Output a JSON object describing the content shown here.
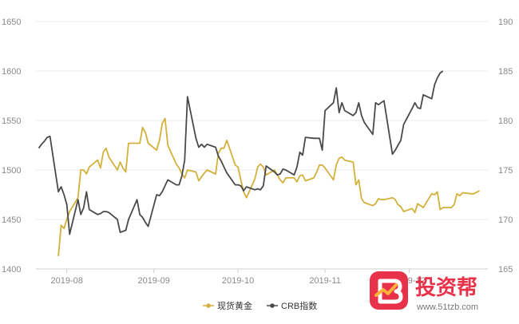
{
  "chart_data": {
    "type": "line",
    "title": "",
    "x_ticks": [
      "2019-08",
      "2019-09",
      "2019-10",
      "2019-11",
      "2019-12"
    ],
    "y_left": {
      "min": 1400,
      "max": 1650,
      "ticks": [
        1400,
        1450,
        1500,
        1550,
        1600,
        1650
      ]
    },
    "y_right": {
      "min": 165,
      "max": 190,
      "ticks": [
        165,
        170,
        175,
        180,
        185,
        190
      ]
    },
    "grid": "horizontal",
    "legend": "bottom-center",
    "series": [
      {
        "name": "现货黄金",
        "axis": "left",
        "color": "#d4b03c",
        "points": [
          [
            "2019-07-29",
            1413
          ],
          [
            "2019-07-30",
            1444
          ],
          [
            "2019-07-31",
            1441
          ],
          [
            "2019-08-01",
            1450
          ],
          [
            "2019-08-02",
            1458
          ],
          [
            "2019-08-05",
            1472
          ],
          [
            "2019-08-06",
            1500
          ],
          [
            "2019-08-07",
            1500
          ],
          [
            "2019-08-08",
            1496
          ],
          [
            "2019-08-09",
            1503
          ],
          [
            "2019-08-12",
            1510
          ],
          [
            "2019-08-13",
            1502
          ],
          [
            "2019-08-14",
            1518
          ],
          [
            "2019-08-15",
            1522
          ],
          [
            "2019-08-16",
            1513
          ],
          [
            "2019-08-19",
            1500
          ],
          [
            "2019-08-20",
            1508
          ],
          [
            "2019-08-21",
            1502
          ],
          [
            "2019-08-22",
            1498
          ],
          [
            "2019-08-23",
            1527
          ],
          [
            "2019-08-26",
            1527
          ],
          [
            "2019-08-27",
            1527
          ],
          [
            "2019-08-28",
            1543
          ],
          [
            "2019-08-29",
            1538
          ],
          [
            "2019-08-30",
            1527
          ],
          [
            "2019-09-02",
            1520
          ],
          [
            "2019-09-03",
            1530
          ],
          [
            "2019-09-04",
            1547
          ],
          [
            "2019-09-05",
            1552
          ],
          [
            "2019-09-06",
            1525
          ],
          [
            "2019-09-09",
            1506
          ],
          [
            "2019-09-10",
            1502
          ],
          [
            "2019-09-11",
            1496
          ],
          [
            "2019-09-12",
            1492
          ],
          [
            "2019-09-13",
            1500
          ],
          [
            "2019-09-16",
            1498
          ],
          [
            "2019-09-17",
            1489
          ],
          [
            "2019-09-18",
            1493
          ],
          [
            "2019-09-19",
            1497
          ],
          [
            "2019-09-20",
            1500
          ],
          [
            "2019-09-23",
            1496
          ],
          [
            "2019-09-24",
            1517
          ],
          [
            "2019-09-25",
            1522
          ],
          [
            "2019-09-26",
            1522
          ],
          [
            "2019-09-27",
            1530
          ],
          [
            "2019-09-30",
            1505
          ],
          [
            "2019-10-01",
            1503
          ],
          [
            "2019-10-02",
            1490
          ],
          [
            "2019-10-03",
            1478
          ],
          [
            "2019-10-04",
            1472
          ],
          [
            "2019-10-07",
            1491
          ],
          [
            "2019-10-08",
            1503
          ],
          [
            "2019-10-09",
            1506
          ],
          [
            "2019-10-10",
            1503
          ],
          [
            "2019-10-11",
            1495
          ],
          [
            "2019-10-14",
            1500
          ],
          [
            "2019-10-15",
            1495
          ],
          [
            "2019-10-16",
            1490
          ],
          [
            "2019-10-17",
            1487
          ],
          [
            "2019-10-18",
            1492
          ],
          [
            "2019-10-21",
            1492
          ],
          [
            "2019-10-22",
            1488
          ],
          [
            "2019-10-23",
            1494
          ],
          [
            "2019-10-24",
            1495
          ],
          [
            "2019-10-25",
            1489
          ],
          [
            "2019-10-28",
            1492
          ],
          [
            "2019-10-29",
            1498
          ],
          [
            "2019-10-30",
            1505
          ],
          [
            "2019-10-31",
            1505
          ],
          [
            "2019-11-01",
            1502
          ],
          [
            "2019-11-04",
            1490
          ],
          [
            "2019-11-05",
            1505
          ],
          [
            "2019-11-06",
            1512
          ],
          [
            "2019-11-07",
            1513
          ],
          [
            "2019-11-08",
            1510
          ],
          [
            "2019-11-11",
            1508
          ],
          [
            "2019-11-12",
            1485
          ],
          [
            "2019-11-13",
            1490
          ],
          [
            "2019-11-14",
            1471
          ],
          [
            "2019-11-15",
            1467
          ],
          [
            "2019-11-18",
            1464
          ],
          [
            "2019-11-19",
            1466
          ],
          [
            "2019-11-20",
            1471
          ],
          [
            "2019-11-21",
            1470
          ],
          [
            "2019-11-22",
            1470
          ],
          [
            "2019-11-25",
            1472
          ],
          [
            "2019-11-26",
            1470
          ],
          [
            "2019-11-27",
            1465
          ],
          [
            "2019-11-28",
            1463
          ],
          [
            "2019-11-29",
            1458
          ],
          [
            "2019-12-02",
            1461
          ],
          [
            "2019-12-03",
            1457
          ],
          [
            "2019-12-04",
            1466
          ],
          [
            "2019-12-05",
            1464
          ],
          [
            "2019-12-06",
            1462
          ],
          [
            "2019-12-09",
            1476
          ],
          [
            "2019-12-10",
            1475
          ],
          [
            "2019-12-11",
            1478
          ],
          [
            "2019-12-12",
            1460
          ],
          [
            "2019-12-13",
            1462
          ],
          [
            "2019-12-16",
            1462
          ],
          [
            "2019-12-17",
            1465
          ],
          [
            "2019-12-18",
            1476
          ],
          [
            "2019-12-19",
            1474
          ],
          [
            "2019-12-20",
            1477
          ],
          [
            "2019-12-23",
            1476
          ],
          [
            "2019-12-24",
            1476
          ],
          [
            "2019-12-26",
            1479
          ]
        ]
      },
      {
        "name": "CRB指数",
        "axis": "right",
        "color": "#4a4a4a",
        "points": [
          [
            "2019-07-22",
            177.2
          ],
          [
            "2019-07-23",
            177.6
          ],
          [
            "2019-07-24",
            177.9
          ],
          [
            "2019-07-25",
            178.3
          ],
          [
            "2019-07-26",
            178.4
          ],
          [
            "2019-07-29",
            172.8
          ],
          [
            "2019-07-30",
            173.3
          ],
          [
            "2019-07-31",
            172.5
          ],
          [
            "2019-08-01",
            171.5
          ],
          [
            "2019-08-02",
            168.5
          ],
          [
            "2019-08-05",
            172.0
          ],
          [
            "2019-08-06",
            170.5
          ],
          [
            "2019-08-07",
            171.2
          ],
          [
            "2019-08-08",
            172.8
          ],
          [
            "2019-08-09",
            171.0
          ],
          [
            "2019-08-12",
            170.5
          ],
          [
            "2019-08-13",
            170.6
          ],
          [
            "2019-08-14",
            170.8
          ],
          [
            "2019-08-15",
            170.8
          ],
          [
            "2019-08-16",
            170.7
          ],
          [
            "2019-08-19",
            170.0
          ],
          [
            "2019-08-20",
            168.7
          ],
          [
            "2019-08-21",
            168.8
          ],
          [
            "2019-08-22",
            168.9
          ],
          [
            "2019-08-23",
            170.0
          ],
          [
            "2019-08-26",
            172.0
          ],
          [
            "2019-08-27",
            170.5
          ],
          [
            "2019-08-28",
            170.2
          ],
          [
            "2019-08-29",
            169.7
          ],
          [
            "2019-08-30",
            169.3
          ],
          [
            "2019-09-02",
            172.5
          ],
          [
            "2019-09-03",
            172.4
          ],
          [
            "2019-09-04",
            172.8
          ],
          [
            "2019-09-05",
            173.4
          ],
          [
            "2019-09-06",
            174.0
          ],
          [
            "2019-09-09",
            173.5
          ],
          [
            "2019-09-10",
            173.5
          ],
          [
            "2019-09-11",
            174.4
          ],
          [
            "2019-09-12",
            176.0
          ],
          [
            "2019-09-13",
            182.4
          ],
          [
            "2019-09-16",
            178.2
          ],
          [
            "2019-09-17",
            177.3
          ],
          [
            "2019-09-18",
            177.6
          ],
          [
            "2019-09-19",
            177.3
          ],
          [
            "2019-09-20",
            177.6
          ],
          [
            "2019-09-23",
            177.3
          ],
          [
            "2019-09-24",
            176.4
          ],
          [
            "2019-09-25",
            175.9
          ],
          [
            "2019-09-26",
            175.3
          ],
          [
            "2019-09-27",
            174.7
          ],
          [
            "2019-09-30",
            173.5
          ],
          [
            "2019-10-01",
            173.5
          ],
          [
            "2019-10-02",
            173.4
          ],
          [
            "2019-10-03",
            172.9
          ],
          [
            "2019-10-04",
            173.3
          ],
          [
            "2019-10-07",
            173.0
          ],
          [
            "2019-10-08",
            173.1
          ],
          [
            "2019-10-09",
            173.0
          ],
          [
            "2019-10-10",
            173.4
          ],
          [
            "2019-10-11",
            175.4
          ],
          [
            "2019-10-14",
            174.8
          ],
          [
            "2019-10-15",
            174.5
          ],
          [
            "2019-10-16",
            174.6
          ],
          [
            "2019-10-17",
            175.1
          ],
          [
            "2019-10-18",
            175.0
          ],
          [
            "2019-10-21",
            174.5
          ],
          [
            "2019-10-22",
            175.3
          ],
          [
            "2019-10-23",
            176.8
          ],
          [
            "2019-10-24",
            176.5
          ],
          [
            "2019-10-25",
            178.3
          ],
          [
            "2019-10-28",
            178.2
          ],
          [
            "2019-10-29",
            178.2
          ],
          [
            "2019-10-30",
            178.2
          ],
          [
            "2019-10-31",
            177.0
          ],
          [
            "2019-11-01",
            181.0
          ],
          [
            "2019-11-04",
            181.8
          ],
          [
            "2019-11-05",
            183.3
          ],
          [
            "2019-11-06",
            180.8
          ],
          [
            "2019-11-07",
            181.8
          ],
          [
            "2019-11-08",
            181.0
          ],
          [
            "2019-11-11",
            180.5
          ],
          [
            "2019-11-12",
            180.8
          ],
          [
            "2019-11-13",
            181.8
          ],
          [
            "2019-11-14",
            180.5
          ],
          [
            "2019-11-15",
            179.8
          ],
          [
            "2019-11-18",
            178.6
          ],
          [
            "2019-11-19",
            181.8
          ],
          [
            "2019-11-20",
            181.6
          ],
          [
            "2019-11-21",
            181.8
          ],
          [
            "2019-11-22",
            182.0
          ],
          [
            "2019-11-25",
            176.6
          ],
          [
            "2019-11-26",
            177.0
          ],
          [
            "2019-11-27",
            177.5
          ],
          [
            "2019-11-28",
            178.0
          ],
          [
            "2019-11-29",
            179.6
          ],
          [
            "2019-12-02",
            181.2
          ],
          [
            "2019-12-03",
            181.8
          ],
          [
            "2019-12-04",
            181.3
          ],
          [
            "2019-12-05",
            181.2
          ],
          [
            "2019-12-06",
            182.6
          ],
          [
            "2019-12-09",
            182.2
          ],
          [
            "2019-12-10",
            183.6
          ],
          [
            "2019-12-11",
            184.3
          ],
          [
            "2019-12-12",
            184.8
          ],
          [
            "2019-12-13",
            185.0
          ]
        ]
      }
    ]
  },
  "watermark": {
    "brand_cn": "投资帮",
    "url": "www.51tzb.com",
    "logo_color": "#e8324a"
  }
}
